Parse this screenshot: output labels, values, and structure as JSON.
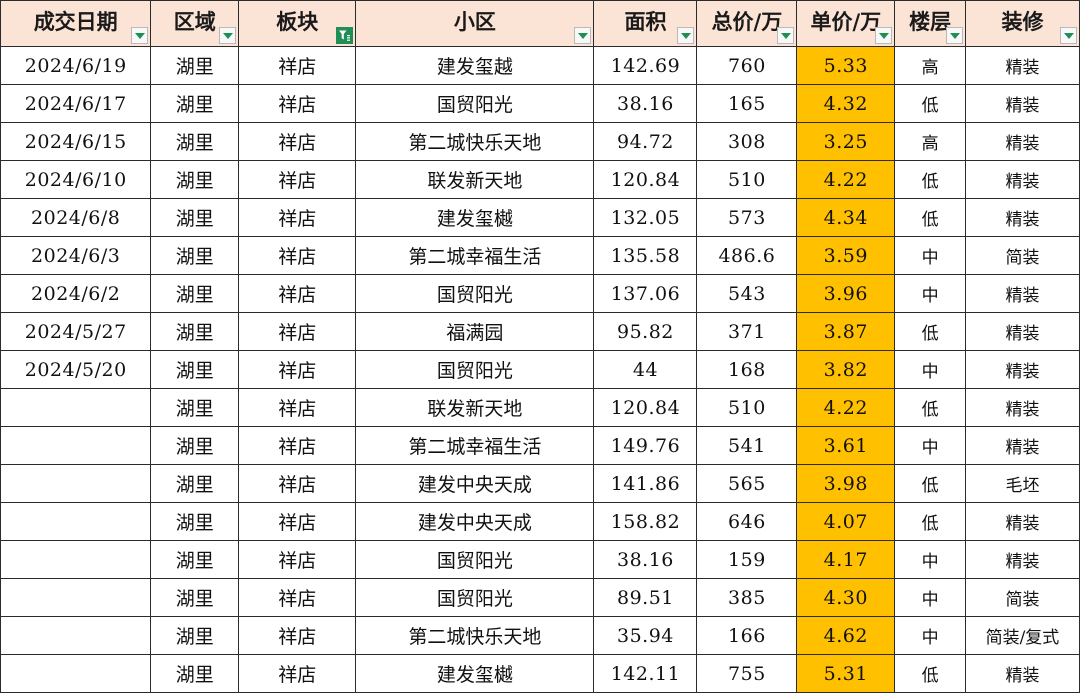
{
  "headers": [
    "成交日期",
    "区域",
    "板块",
    "小区",
    "面积",
    "总价/万",
    "单价/万",
    "楼层",
    "装修"
  ],
  "filter_active_column": "板块",
  "colors": {
    "header_bg": "#fbe3d6",
    "highlight": "#ffc000",
    "filter_green": "#1f8f55"
  },
  "rows": [
    [
      "2024/6/19",
      "湖里",
      "祥店",
      "建发玺越",
      "142.69",
      "760",
      "5.33",
      "高",
      "精装"
    ],
    [
      "2024/6/17",
      "湖里",
      "祥店",
      "国贸阳光",
      "38.16",
      "165",
      "4.32",
      "低",
      "精装"
    ],
    [
      "2024/6/15",
      "湖里",
      "祥店",
      "第二城快乐天地",
      "94.72",
      "308",
      "3.25",
      "高",
      "精装"
    ],
    [
      "2024/6/10",
      "湖里",
      "祥店",
      "联发新天地",
      "120.84",
      "510",
      "4.22",
      "低",
      "精装"
    ],
    [
      "2024/6/8",
      "湖里",
      "祥店",
      "建发玺樾",
      "132.05",
      "573",
      "4.34",
      "低",
      "精装"
    ],
    [
      "2024/6/3",
      "湖里",
      "祥店",
      "第二城幸福生活",
      "135.58",
      "486.6",
      "3.59",
      "中",
      "简装"
    ],
    [
      "2024/6/2",
      "湖里",
      "祥店",
      "国贸阳光",
      "137.06",
      "543",
      "3.96",
      "中",
      "精装"
    ],
    [
      "2024/5/27",
      "湖里",
      "祥店",
      "福满园",
      "95.82",
      "371",
      "3.87",
      "低",
      "精装"
    ],
    [
      "2024/5/20",
      "湖里",
      "祥店",
      "国贸阳光",
      "44",
      "168",
      "3.82",
      "中",
      "精装"
    ],
    [
      "",
      "湖里",
      "祥店",
      "联发新天地",
      "120.84",
      "510",
      "4.22",
      "低",
      "精装"
    ],
    [
      "",
      "湖里",
      "祥店",
      "第二城幸福生活",
      "149.76",
      "541",
      "3.61",
      "中",
      "精装"
    ],
    [
      "",
      "湖里",
      "祥店",
      "建发中央天成",
      "141.86",
      "565",
      "3.98",
      "低",
      "毛坯"
    ],
    [
      "",
      "湖里",
      "祥店",
      "建发中央天成",
      "158.82",
      "646",
      "4.07",
      "低",
      "精装"
    ],
    [
      "",
      "湖里",
      "祥店",
      "国贸阳光",
      "38.16",
      "159",
      "4.17",
      "中",
      "精装"
    ],
    [
      "",
      "湖里",
      "祥店",
      "国贸阳光",
      "89.51",
      "385",
      "4.30",
      "中",
      "简装"
    ],
    [
      "",
      "湖里",
      "祥店",
      "第二城快乐天地",
      "35.94",
      "166",
      "4.62",
      "中",
      "简装/复式"
    ],
    [
      "",
      "湖里",
      "祥店",
      "建发玺樾",
      "142.11",
      "755",
      "5.31",
      "低",
      "精装"
    ]
  ]
}
